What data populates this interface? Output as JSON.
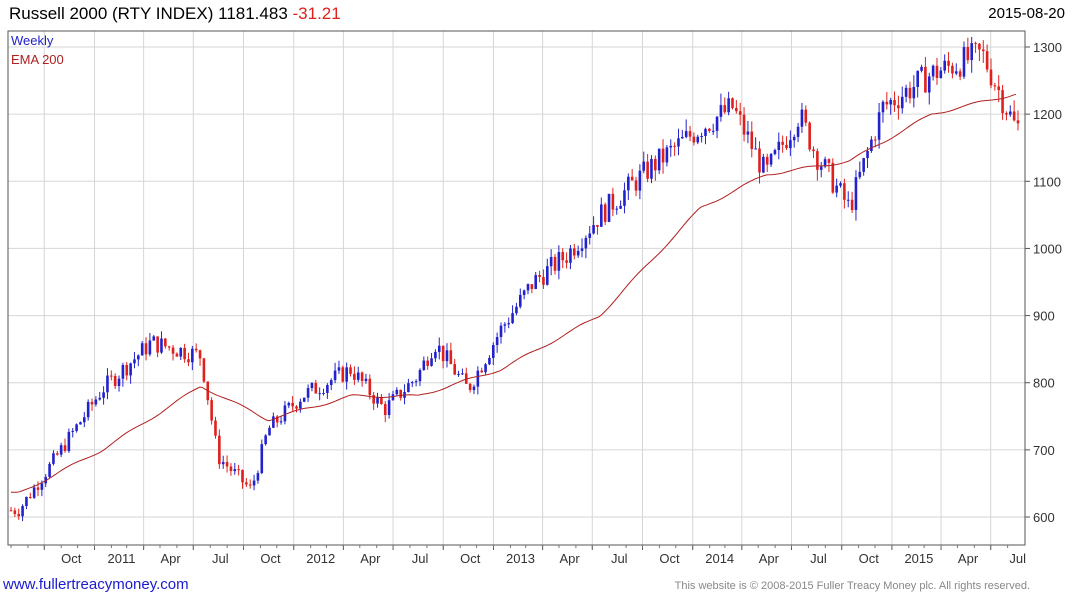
{
  "header": {
    "name": "Russell 2000 (RTY INDEX)",
    "last": "1181.483",
    "change": "-31.21",
    "date": "2015-08-20"
  },
  "footer": {
    "link": "www.fullertreacymoney.com",
    "copyright": "This website is © 2008-2015 Fuller Treacy Money plc. All rights reserved."
  },
  "colors": {
    "up": "#2222cc",
    "down": "#e0201c",
    "ema": "#b02020",
    "grid": "#d6d6d6"
  },
  "chart_data": {
    "type": "candlestick",
    "title": "Russell 2000 (RTY INDEX) 1181.483 -31.21",
    "period": "Weekly",
    "legend": [
      {
        "label": "Weekly",
        "color": "#2222cc"
      },
      {
        "label": "EMA 200",
        "color": "#b02020"
      }
    ],
    "ylim": [
      560,
      1310
    ],
    "yticks": [
      600,
      700,
      800,
      900,
      1000,
      1100,
      1200,
      1300
    ],
    "xlabels": [
      "Oct",
      "2011",
      "Apr",
      "Jul",
      "Oct",
      "2012",
      "Apr",
      "Jul",
      "Oct",
      "2013",
      "Apr",
      "Jul",
      "Oct",
      "2014",
      "Apr",
      "Jul",
      "Oct",
      "2015",
      "Apr",
      "Jul"
    ],
    "key_points": [
      {
        "date": "2010-08",
        "close": 610
      },
      {
        "date": "2010-10",
        "close": 680
      },
      {
        "date": "2011-01",
        "close": 790
      },
      {
        "date": "2011-04",
        "close": 860
      },
      {
        "date": "2011-07",
        "close": 840
      },
      {
        "date": "2011-08",
        "close": 690
      },
      {
        "date": "2011-10",
        "close": 640
      },
      {
        "date": "2011-11",
        "close": 730
      },
      {
        "date": "2012-01",
        "close": 780
      },
      {
        "date": "2012-04",
        "close": 820
      },
      {
        "date": "2012-06",
        "close": 760
      },
      {
        "date": "2012-08",
        "close": 810
      },
      {
        "date": "2012-09",
        "close": 860
      },
      {
        "date": "2012-11",
        "close": 790
      },
      {
        "date": "2013-01",
        "close": 880
      },
      {
        "date": "2013-03",
        "close": 950
      },
      {
        "date": "2013-05",
        "close": 990
      },
      {
        "date": "2013-07",
        "close": 1050
      },
      {
        "date": "2013-10",
        "close": 1120
      },
      {
        "date": "2014-01",
        "close": 1180
      },
      {
        "date": "2014-03",
        "close": 1210
      },
      {
        "date": "2014-05",
        "close": 1110
      },
      {
        "date": "2014-07",
        "close": 1200
      },
      {
        "date": "2014-08",
        "close": 1140
      },
      {
        "date": "2014-10",
        "close": 1060
      },
      {
        "date": "2014-12",
        "close": 1210
      },
      {
        "date": "2015-03",
        "close": 1260
      },
      {
        "date": "2015-06",
        "close": 1290
      },
      {
        "date": "2015-08",
        "close": 1181
      }
    ],
    "ema_points": [
      {
        "date": "2010-08",
        "value": 635
      },
      {
        "date": "2011-01",
        "value": 700
      },
      {
        "date": "2011-07",
        "value": 795
      },
      {
        "date": "2011-11",
        "value": 745
      },
      {
        "date": "2012-04",
        "value": 780
      },
      {
        "date": "2012-08",
        "value": 780
      },
      {
        "date": "2013-01",
        "value": 820
      },
      {
        "date": "2013-07",
        "value": 900
      },
      {
        "date": "2014-01",
        "value": 1060
      },
      {
        "date": "2014-05",
        "value": 1110
      },
      {
        "date": "2014-10",
        "value": 1130
      },
      {
        "date": "2015-03",
        "value": 1200
      },
      {
        "date": "2015-08",
        "value": 1230
      }
    ]
  }
}
